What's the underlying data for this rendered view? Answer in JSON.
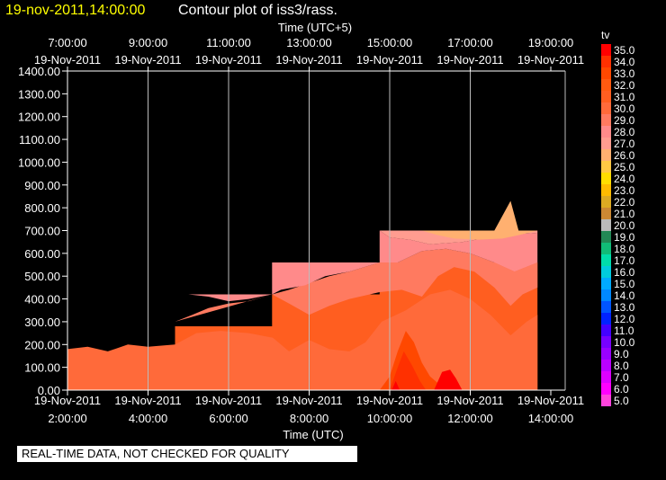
{
  "header": {
    "timestamp": "19-nov-2011,14:00:00",
    "title": "Contour plot of iss3/rass."
  },
  "notice": "REAL-TIME DATA, NOT CHECKED FOR QUALITY",
  "colors": {
    "background": "#000000",
    "foreground": "#ffffff",
    "timestamp": "#ffff00",
    "palette": [
      "#ff44dd",
      "#ff00ff",
      "#dd00ff",
      "#bb00ff",
      "#9900ff",
      "#7700ff",
      "#4400ff",
      "#0022ff",
      "#0055ff",
      "#0088ff",
      "#00aaff",
      "#00ccdd",
      "#00ddaa",
      "#11bb77",
      "#228855",
      "#bbbbbb",
      "#cc8833",
      "#ddaa22",
      "#ffbb00",
      "#ffdd00",
      "#ffc844",
      "#ffb070",
      "#ff9c90",
      "#ff8a8a",
      "#ff7a60",
      "#ff6a3a",
      "#ff5e20",
      "#ff5a10",
      "#ff4800",
      "#ff3000",
      "#ff0000"
    ]
  },
  "chart_data": {
    "type": "heatmap",
    "title": "Contour plot of iss3/rass.",
    "xlabel": "Time (UTC)",
    "xlabel_top": "Time (UTC+5)",
    "ylabel": "",
    "variable": "tv",
    "xlim": [
      "19-Nov-2011 2:00:00",
      "19-Nov-2011 14:00:00"
    ],
    "ylim": [
      0,
      1400
    ],
    "grid": true,
    "x_ticks_bottom": [
      {
        "date": "19-Nov-2011",
        "time": "2:00:00"
      },
      {
        "date": "19-Nov-2011",
        "time": "4:00:00"
      },
      {
        "date": "19-Nov-2011",
        "time": "6:00:00"
      },
      {
        "date": "19-Nov-2011",
        "time": "8:00:00"
      },
      {
        "date": "19-Nov-2011",
        "time": "10:00:00"
      },
      {
        "date": "19-Nov-2011",
        "time": "12:00:00"
      },
      {
        "date": "19-Nov-2011",
        "time": "14:00:00"
      }
    ],
    "x_ticks_top": [
      {
        "time": "7:00:00",
        "date": "19-Nov-2011"
      },
      {
        "time": "9:00:00",
        "date": "19-Nov-2011"
      },
      {
        "time": "11:00:00",
        "date": "19-Nov-2011"
      },
      {
        "time": "13:00:00",
        "date": "19-Nov-2011"
      },
      {
        "time": "15:00:00",
        "date": "19-Nov-2011"
      },
      {
        "time": "17:00:00",
        "date": "19-Nov-2011"
      },
      {
        "time": "19:00:00",
        "date": "19-Nov-2011"
      }
    ],
    "y_ticks": [
      "0.00",
      "100.00",
      "200.00",
      "300.00",
      "400.00",
      "500.00",
      "600.00",
      "700.00",
      "800.00",
      "900.00",
      "1000.00",
      "1100.00",
      "1200.00",
      "1300.00",
      "1400.00"
    ],
    "colorbar": {
      "label": "tv",
      "levels": [
        "5.0",
        "6.0",
        "7.0",
        "8.0",
        "9.0",
        "10.0",
        "11.0",
        "12.0",
        "13.0",
        "14.0",
        "15.0",
        "16.0",
        "17.0",
        "18.0",
        "19.0",
        "20.0",
        "21.0",
        "22.0",
        "23.0",
        "24.0",
        "25.0",
        "26.0",
        "27.0",
        "28.0",
        "29.0",
        "30.0",
        "31.0",
        "32.0",
        "33.0",
        "34.0",
        "35.0"
      ],
      "min": 5,
      "max": 35
    },
    "data_extent": [
      {
        "x_start": "19-Nov-2011 2:00",
        "x_end": "19-Nov-2011 4:40",
        "top_height": 280
      },
      {
        "x_start": "19-Nov-2011 4:40",
        "x_end": "19-Nov-2011 7:05",
        "top_height": 420
      },
      {
        "x_start": "19-Nov-2011 7:05",
        "x_end": "19-Nov-2011 9:45",
        "top_height": 560
      },
      {
        "x_start": "19-Nov-2011 9:45",
        "x_end": "19-Nov-2011 13:40",
        "top_height": 700
      }
    ],
    "bands": [
      {
        "level": 30.0,
        "color": "#ff5e20",
        "points": [
          [
            0,
            0
          ],
          [
            2.67,
            0
          ],
          [
            2.67,
            280
          ],
          [
            5.08,
            280
          ],
          [
            5.08,
            420
          ],
          [
            7.75,
            420
          ],
          [
            7.75,
            560
          ],
          [
            11.67,
            560
          ],
          [
            11.67,
            700
          ],
          [
            11.67,
            0
          ]
        ]
      },
      {
        "level": 29.0,
        "color": "#ff6a3a",
        "points": [
          [
            0.0,
            180
          ],
          [
            0.5,
            190
          ],
          [
            1.0,
            170
          ],
          [
            1.5,
            200
          ],
          [
            2.0,
            190
          ],
          [
            2.67,
            200
          ],
          [
            3.2,
            250
          ],
          [
            3.8,
            260
          ],
          [
            4.5,
            250
          ],
          [
            5.1,
            230
          ],
          [
            5.5,
            170
          ],
          [
            6.0,
            220
          ],
          [
            6.5,
            180
          ],
          [
            7.0,
            170
          ],
          [
            7.4,
            210
          ],
          [
            7.8,
            300
          ],
          [
            8.4,
            350
          ],
          [
            9.0,
            420
          ],
          [
            9.5,
            440
          ],
          [
            10.0,
            400
          ],
          [
            10.5,
            330
          ],
          [
            11.0,
            240
          ],
          [
            11.4,
            300
          ],
          [
            11.67,
            330
          ],
          [
            11.67,
            0
          ],
          [
            0,
            0
          ]
        ]
      },
      {
        "level": 28.0,
        "color": "#ff7a60",
        "points": [
          [
            2.67,
            300
          ],
          [
            3.1,
            330
          ],
          [
            3.5,
            360
          ],
          [
            4.0,
            380
          ],
          [
            4.5,
            390
          ],
          [
            5.08,
            420
          ],
          [
            5.5,
            380
          ],
          [
            6.0,
            330
          ],
          [
            6.5,
            370
          ],
          [
            7.0,
            400
          ],
          [
            7.75,
            430
          ],
          [
            8.3,
            440
          ],
          [
            8.8,
            410
          ],
          [
            9.2,
            500
          ],
          [
            9.6,
            540
          ],
          [
            10.1,
            520
          ],
          [
            10.6,
            450
          ],
          [
            11.0,
            370
          ],
          [
            11.3,
            420
          ],
          [
            11.67,
            450
          ],
          [
            11.67,
            560
          ],
          [
            11.1,
            520
          ],
          [
            10.6,
            560
          ],
          [
            10.0,
            600
          ],
          [
            9.4,
            620
          ],
          [
            8.8,
            610
          ],
          [
            8.2,
            560
          ],
          [
            7.75,
            560
          ],
          [
            7.0,
            520
          ],
          [
            6.5,
            500
          ],
          [
            5.5,
            440
          ],
          [
            5.08,
            420
          ]
        ]
      },
      {
        "level": 27.0,
        "color": "#ff8a8a",
        "points": [
          [
            3.0,
            420
          ],
          [
            3.5,
            410
          ],
          [
            4.0,
            390
          ],
          [
            4.5,
            400
          ],
          [
            5.08,
            420
          ],
          [
            5.08,
            420
          ],
          [
            5.3,
            440
          ],
          [
            5.9,
            460
          ],
          [
            6.4,
            500
          ],
          [
            7.0,
            520
          ],
          [
            7.75,
            560
          ],
          [
            8.2,
            560
          ],
          [
            8.8,
            610
          ],
          [
            9.4,
            620
          ],
          [
            10.0,
            600
          ],
          [
            10.6,
            560
          ],
          [
            11.1,
            520
          ],
          [
            11.67,
            560
          ],
          [
            11.67,
            690
          ],
          [
            10.8,
            680
          ],
          [
            9.8,
            650
          ],
          [
            9.0,
            640
          ],
          [
            8.5,
            660
          ],
          [
            8.0,
            670
          ],
          [
            7.75,
            700
          ],
          [
            7.75,
            560
          ],
          [
            5.08,
            560
          ],
          [
            5.08,
            420
          ],
          [
            2.67,
            420
          ]
        ]
      },
      {
        "level": 26.0,
        "color": "#ff9c90",
        "points": [
          [
            7.75,
            700
          ],
          [
            8.0,
            670
          ],
          [
            8.5,
            660
          ],
          [
            9.0,
            640
          ],
          [
            9.8,
            650
          ],
          [
            10.8,
            680
          ],
          [
            11.67,
            690
          ],
          [
            11.67,
            700
          ]
        ]
      },
      {
        "level": 25.0,
        "color": "#ffb070",
        "points": [
          [
            8.8,
            700
          ],
          [
            9.2,
            680
          ],
          [
            9.6,
            665
          ],
          [
            10.2,
            660
          ],
          [
            10.8,
            665
          ],
          [
            11.2,
            680
          ],
          [
            11.67,
            700
          ],
          [
            11.2,
            700
          ],
          [
            11.0,
            830
          ],
          [
            10.6,
            700
          ]
        ]
      },
      {
        "level": 31.0,
        "color": "#ff4800",
        "points": [
          [
            7.75,
            0
          ],
          [
            8.0,
            60
          ],
          [
            8.2,
            170
          ],
          [
            8.4,
            260
          ],
          [
            8.6,
            210
          ],
          [
            8.8,
            120
          ],
          [
            9.0,
            60
          ],
          [
            9.2,
            30
          ],
          [
            9.4,
            0
          ]
        ]
      },
      {
        "level": 32.0,
        "color": "#ff3000",
        "points": [
          [
            8.0,
            0
          ],
          [
            8.2,
            100
          ],
          [
            8.35,
            170
          ],
          [
            8.55,
            110
          ],
          [
            8.75,
            40
          ],
          [
            8.9,
            0
          ]
        ]
      },
      {
        "level": 34.0,
        "color": "#ff0000",
        "points": [
          [
            8.05,
            0
          ],
          [
            8.15,
            40
          ],
          [
            8.25,
            0
          ]
        ]
      },
      {
        "level": 34.0,
        "color": "#ff0000",
        "points": [
          [
            9.1,
            0
          ],
          [
            9.3,
            80
          ],
          [
            9.5,
            90
          ],
          [
            9.65,
            50
          ],
          [
            9.8,
            0
          ]
        ]
      }
    ]
  }
}
